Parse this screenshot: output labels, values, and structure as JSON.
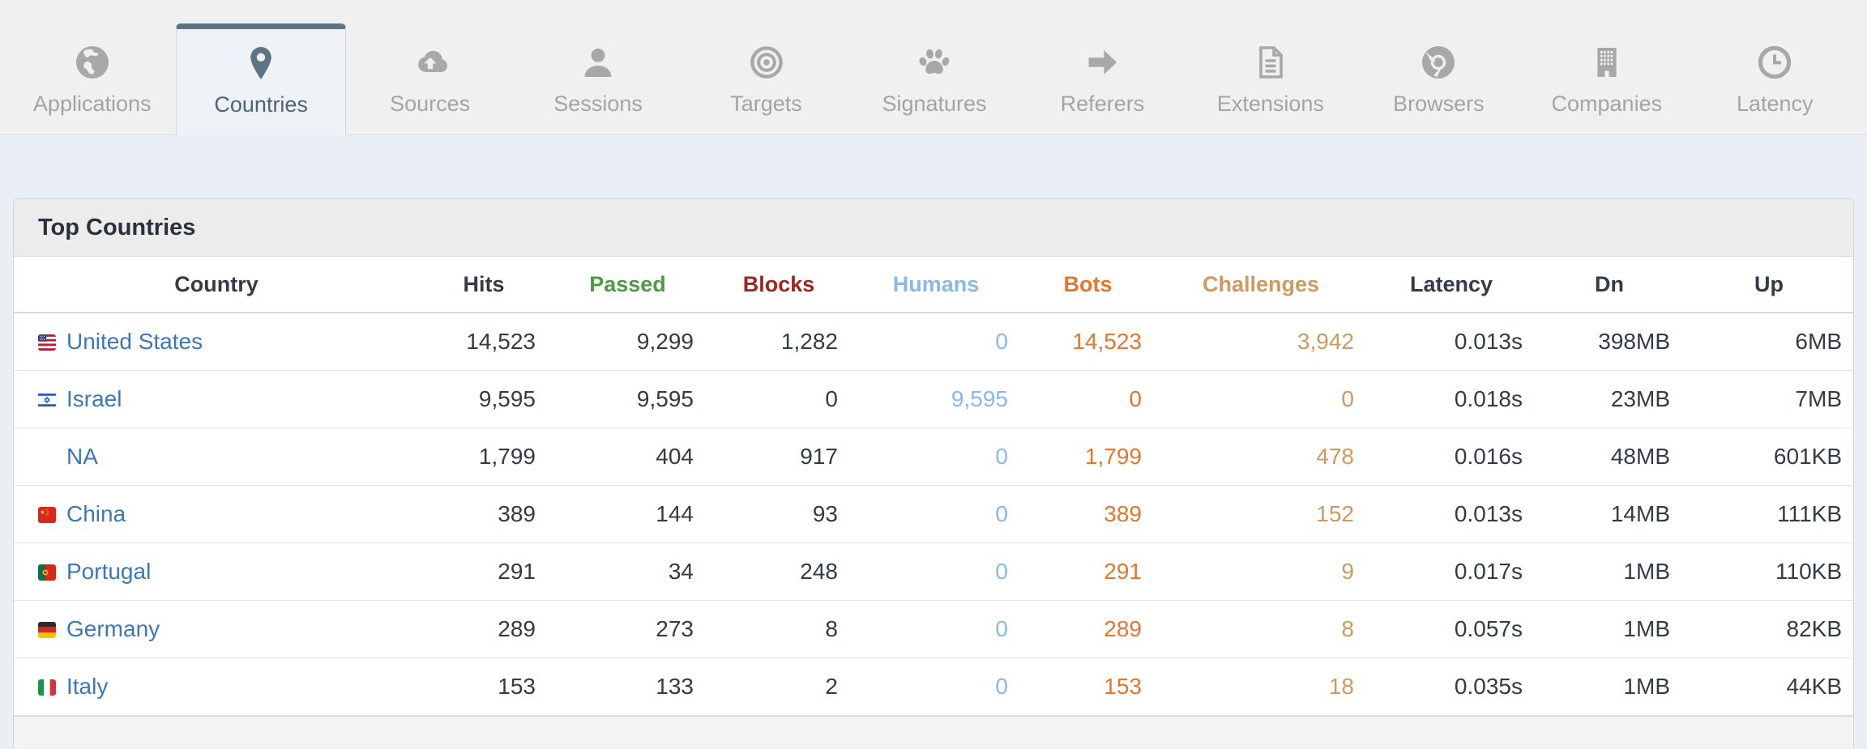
{
  "tabs": [
    {
      "label": "Applications",
      "icon": "globe-icon",
      "active": false
    },
    {
      "label": "Countries",
      "icon": "map-pin-icon",
      "active": true
    },
    {
      "label": "Sources",
      "icon": "cloud-upload-icon",
      "active": false
    },
    {
      "label": "Sessions",
      "icon": "user-icon",
      "active": false
    },
    {
      "label": "Targets",
      "icon": "bullseye-icon",
      "active": false
    },
    {
      "label": "Signatures",
      "icon": "paw-icon",
      "active": false
    },
    {
      "label": "Referers",
      "icon": "arrow-right-icon",
      "active": false
    },
    {
      "label": "Extensions",
      "icon": "document-icon",
      "active": false
    },
    {
      "label": "Browsers",
      "icon": "chrome-icon",
      "active": false
    },
    {
      "label": "Companies",
      "icon": "building-icon",
      "active": false
    },
    {
      "label": "Latency",
      "icon": "clock-icon",
      "active": false
    }
  ],
  "panel": {
    "title": "Top Countries",
    "columns": [
      {
        "key": "country",
        "label": "Country",
        "color": "#333b48"
      },
      {
        "key": "hits",
        "label": "Hits",
        "color": "#333b48"
      },
      {
        "key": "passed",
        "label": "Passed",
        "color": "#4f9a44"
      },
      {
        "key": "blocks",
        "label": "Blocks",
        "color": "#9e261f"
      },
      {
        "key": "humans",
        "label": "Humans",
        "color": "#88b9ea"
      },
      {
        "key": "bots",
        "label": "Bots",
        "color": "#e5762e"
      },
      {
        "key": "challenges",
        "label": "Challenges",
        "color": "#d0995f"
      },
      {
        "key": "latency",
        "label": "Latency",
        "color": "#333b48"
      },
      {
        "key": "dn",
        "label": "Dn",
        "color": "#333b48"
      },
      {
        "key": "up",
        "label": "Up",
        "color": "#333b48"
      }
    ],
    "rows": [
      {
        "country": "United States",
        "flag": "us",
        "hits": "14,523",
        "passed": "9,299",
        "blocks": "1,282",
        "humans": "0",
        "bots": "14,523",
        "challenges": "3,942",
        "latency": "0.013s",
        "dn": "398MB",
        "up": "6MB"
      },
      {
        "country": "Israel",
        "flag": "il",
        "hits": "9,595",
        "passed": "9,595",
        "blocks": "0",
        "humans": "9,595",
        "bots": "0",
        "challenges": "0",
        "latency": "0.018s",
        "dn": "23MB",
        "up": "7MB"
      },
      {
        "country": "NA",
        "flag": null,
        "hits": "1,799",
        "passed": "404",
        "blocks": "917",
        "humans": "0",
        "bots": "1,799",
        "challenges": "478",
        "latency": "0.016s",
        "dn": "48MB",
        "up": "601KB"
      },
      {
        "country": "China",
        "flag": "cn",
        "hits": "389",
        "passed": "144",
        "blocks": "93",
        "humans": "0",
        "bots": "389",
        "challenges": "152",
        "latency": "0.013s",
        "dn": "14MB",
        "up": "111KB"
      },
      {
        "country": "Portugal",
        "flag": "pt",
        "hits": "291",
        "passed": "34",
        "blocks": "248",
        "humans": "0",
        "bots": "291",
        "challenges": "9",
        "latency": "0.017s",
        "dn": "1MB",
        "up": "110KB"
      },
      {
        "country": "Germany",
        "flag": "de",
        "hits": "289",
        "passed": "273",
        "blocks": "8",
        "humans": "0",
        "bots": "289",
        "challenges": "8",
        "latency": "0.057s",
        "dn": "1MB",
        "up": "82KB"
      },
      {
        "country": "Italy",
        "flag": "it",
        "hits": "153",
        "passed": "133",
        "blocks": "2",
        "humans": "0",
        "bots": "153",
        "challenges": "18",
        "latency": "0.035s",
        "dn": "1MB",
        "up": "44KB"
      }
    ],
    "value_colors": {
      "humans": "#88b9ea",
      "bots": "#e5762e",
      "challenges": "#d0995f",
      "default": "#333b47",
      "country_link": "#3c78b8"
    }
  },
  "colors": {
    "active_tab_accent": "#5e7384",
    "page_background": "#e9eff4",
    "tabbar_background": "#f0f0f1"
  }
}
